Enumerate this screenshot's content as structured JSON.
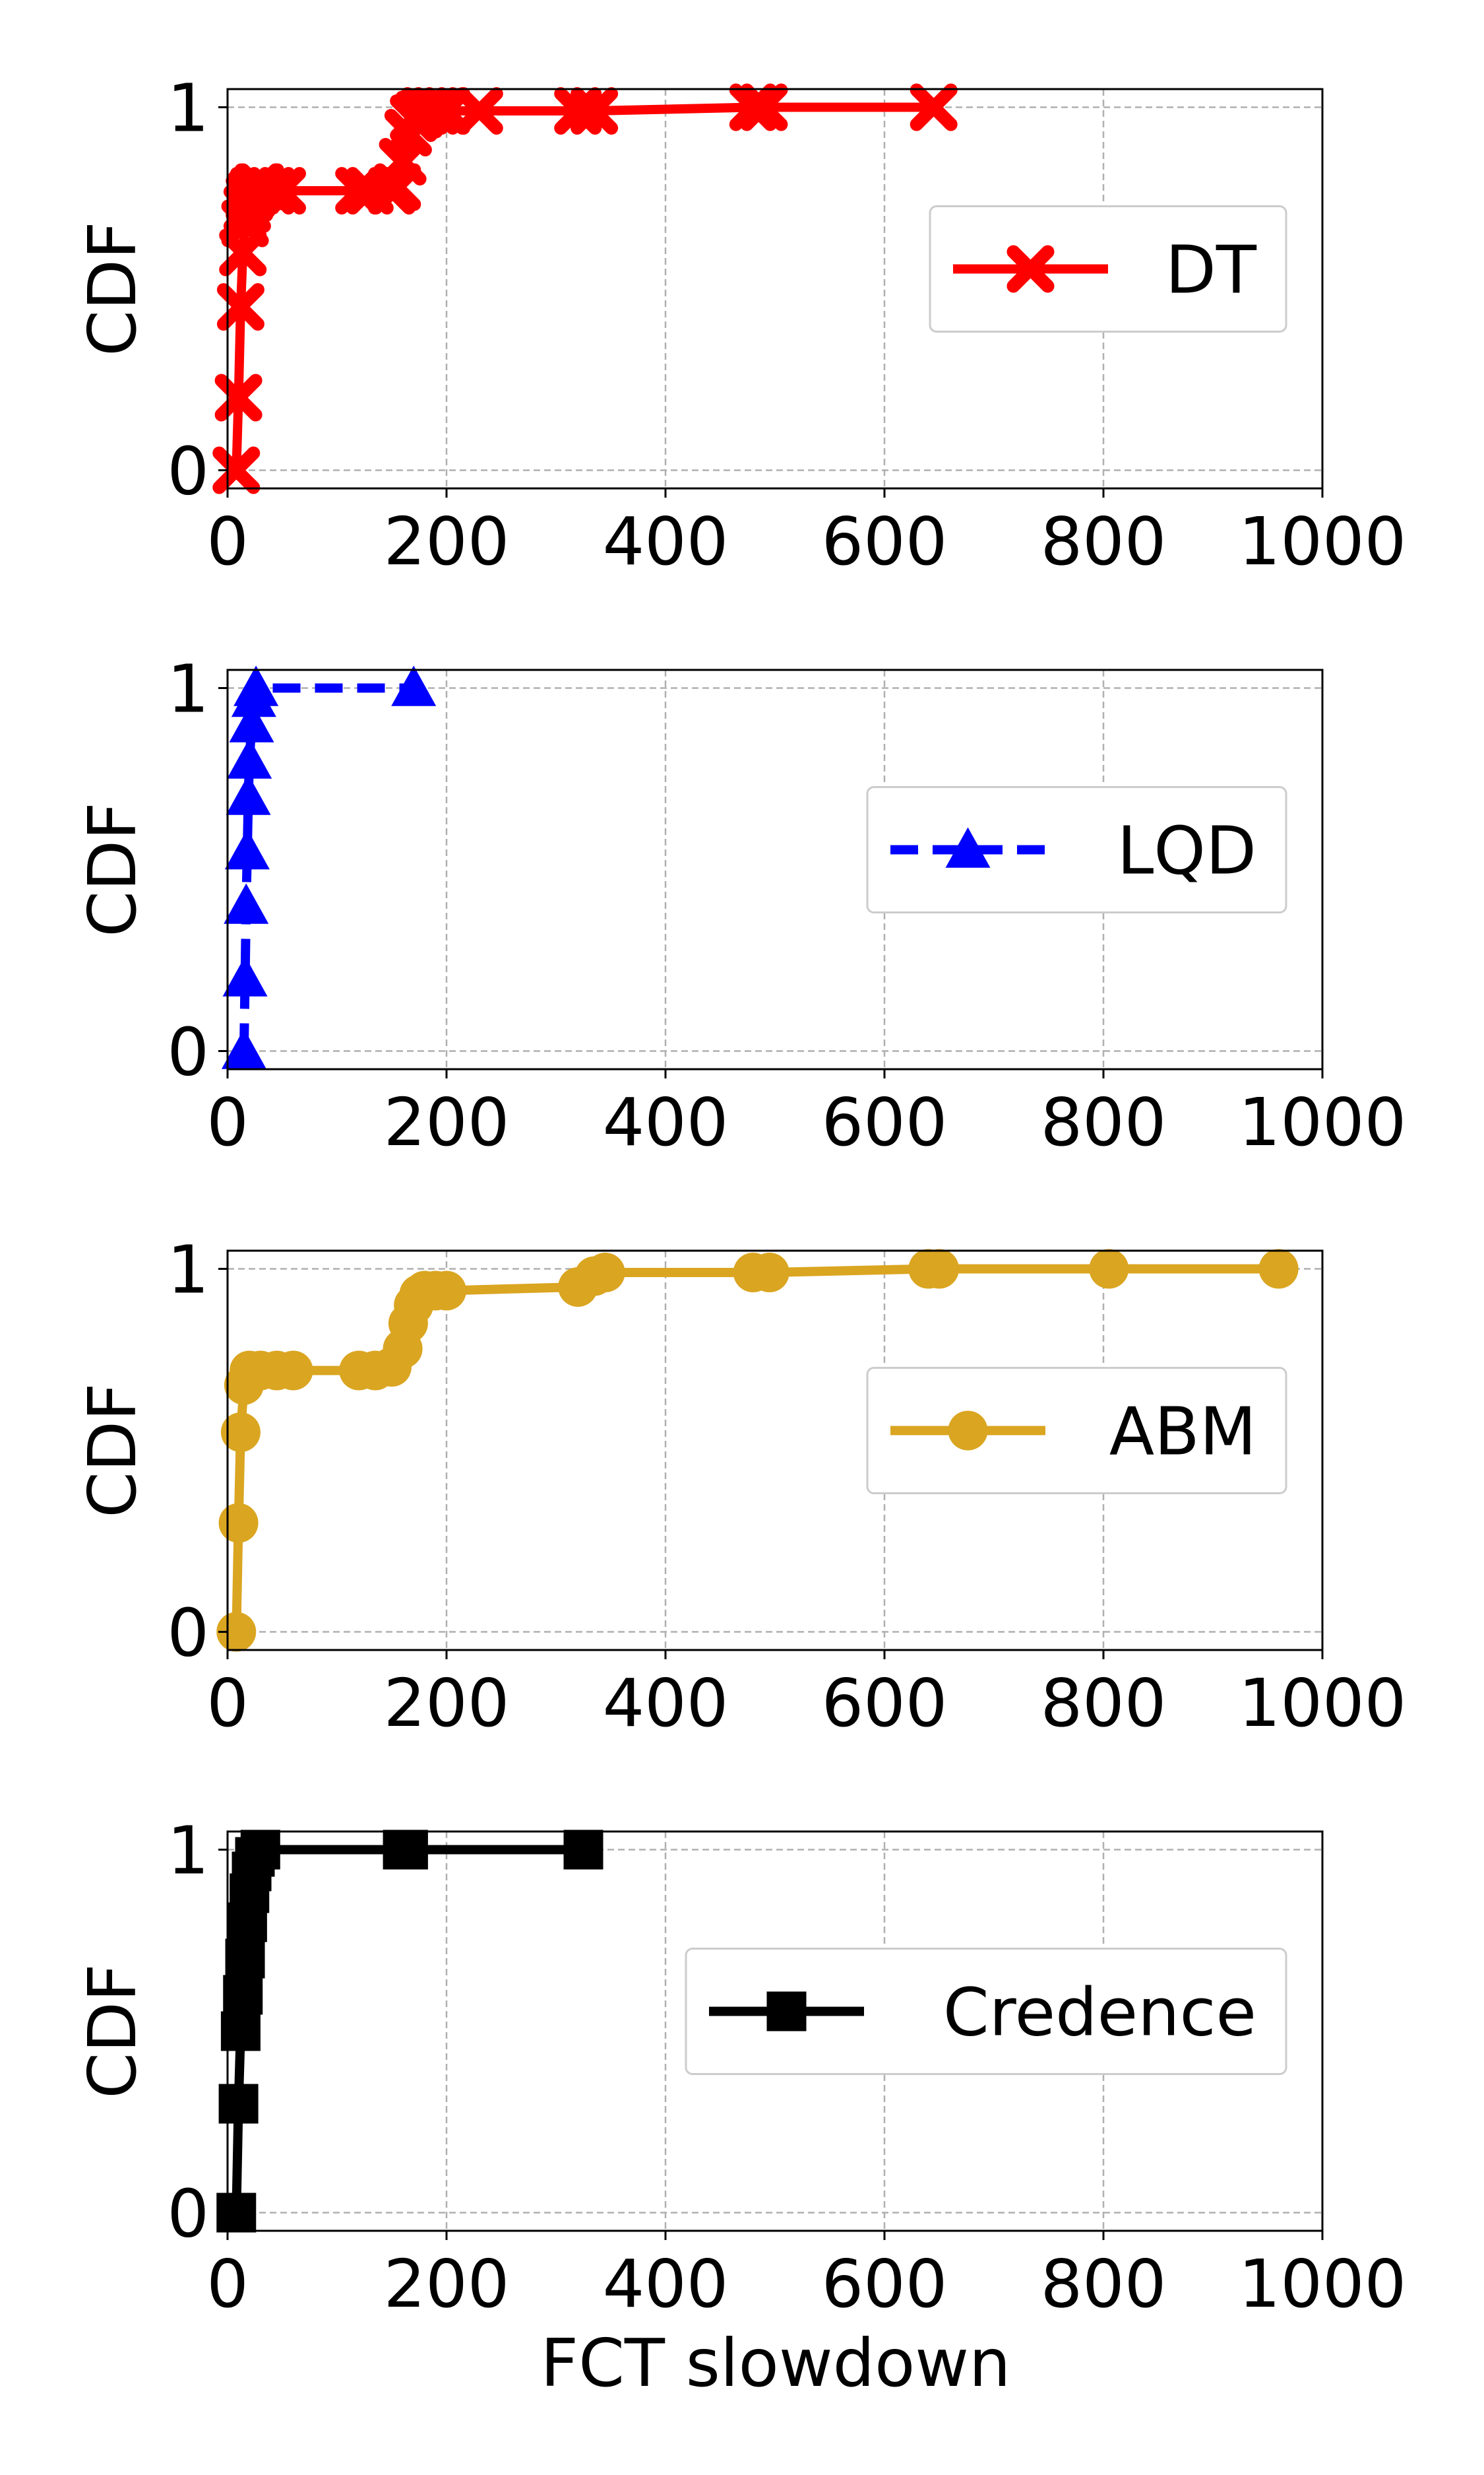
{
  "figure": {
    "xlabel": "FCT slowdown"
  },
  "chart_data": [
    {
      "type": "line",
      "ylabel": "CDF",
      "xlim": [
        0,
        1000
      ],
      "ylim": [
        -0.05,
        1.05
      ],
      "xticks": [
        0,
        200,
        400,
        600,
        800,
        1000
      ],
      "yticks": [
        0,
        1
      ],
      "grid": true,
      "legend_position": "center-right",
      "series": [
        {
          "name": "DT",
          "color": "#ff0000",
          "linestyle": "solid",
          "marker": "x",
          "x": [
            8,
            10,
            12,
            14,
            16,
            18,
            20,
            22,
            24,
            26,
            28,
            30,
            40,
            50,
            120,
            130,
            150,
            155,
            160,
            165,
            170,
            175,
            180,
            190,
            200,
            230,
            320,
            335,
            480,
            490,
            645
          ],
          "y": [
            0.0,
            0.2,
            0.45,
            0.6,
            0.68,
            0.72,
            0.75,
            0.76,
            0.77,
            0.77,
            0.78,
            0.78,
            0.77,
            0.77,
            0.77,
            0.77,
            0.77,
            0.78,
            0.85,
            0.93,
            0.97,
            0.98,
            0.99,
            0.99,
            0.99,
            0.99,
            0.99,
            0.99,
            1.0,
            1.0,
            1.0
          ]
        }
      ]
    },
    {
      "type": "line",
      "ylabel": "CDF",
      "xlim": [
        0,
        1000
      ],
      "ylim": [
        -0.05,
        1.05
      ],
      "xticks": [
        0,
        200,
        400,
        600,
        800,
        1000
      ],
      "yticks": [
        0,
        1
      ],
      "grid": true,
      "legend_position": "center-right",
      "series": [
        {
          "name": "LQD",
          "color": "#0000ff",
          "linestyle": "dashed",
          "marker": "triangle",
          "x": [
            15,
            16,
            17,
            18,
            19,
            20,
            22,
            24,
            26,
            170
          ],
          "y": [
            0.0,
            0.2,
            0.4,
            0.55,
            0.7,
            0.8,
            0.9,
            0.97,
            1.0,
            1.0
          ]
        }
      ]
    },
    {
      "type": "line",
      "ylabel": "CDF",
      "xlim": [
        0,
        1000
      ],
      "ylim": [
        -0.05,
        1.05
      ],
      "xticks": [
        0,
        200,
        400,
        600,
        800,
        1000
      ],
      "yticks": [
        0,
        1
      ],
      "grid": true,
      "legend_position": "center-right",
      "series": [
        {
          "name": "ABM",
          "color": "#daa520",
          "linestyle": "solid",
          "marker": "circle",
          "x": [
            8,
            10,
            12,
            15,
            20,
            30,
            45,
            60,
            120,
            135,
            150,
            160,
            165,
            170,
            175,
            180,
            190,
            200,
            320,
            335,
            345,
            480,
            495,
            640,
            650,
            805,
            960
          ],
          "y": [
            0.0,
            0.3,
            0.55,
            0.68,
            0.72,
            0.72,
            0.72,
            0.72,
            0.72,
            0.72,
            0.73,
            0.78,
            0.85,
            0.9,
            0.93,
            0.94,
            0.94,
            0.94,
            0.95,
            0.98,
            0.99,
            0.99,
            0.99,
            1.0,
            1.0,
            1.0,
            1.0
          ]
        }
      ]
    },
    {
      "type": "line",
      "ylabel": "CDF",
      "xlim": [
        0,
        1000
      ],
      "ylim": [
        -0.05,
        1.05
      ],
      "xticks": [
        0,
        200,
        400,
        600,
        800,
        1000
      ],
      "yticks": [
        0,
        1
      ],
      "grid": true,
      "legend_position": "center-right",
      "series": [
        {
          "name": "Credence",
          "color": "#000000",
          "linestyle": "solid",
          "marker": "square",
          "x": [
            8,
            10,
            12,
            14,
            16,
            18,
            20,
            22,
            25,
            30,
            160,
            165,
            325
          ],
          "y": [
            0.0,
            0.3,
            0.5,
            0.6,
            0.7,
            0.8,
            0.88,
            0.94,
            0.98,
            1.0,
            1.0,
            1.0,
            1.0
          ]
        }
      ]
    }
  ]
}
